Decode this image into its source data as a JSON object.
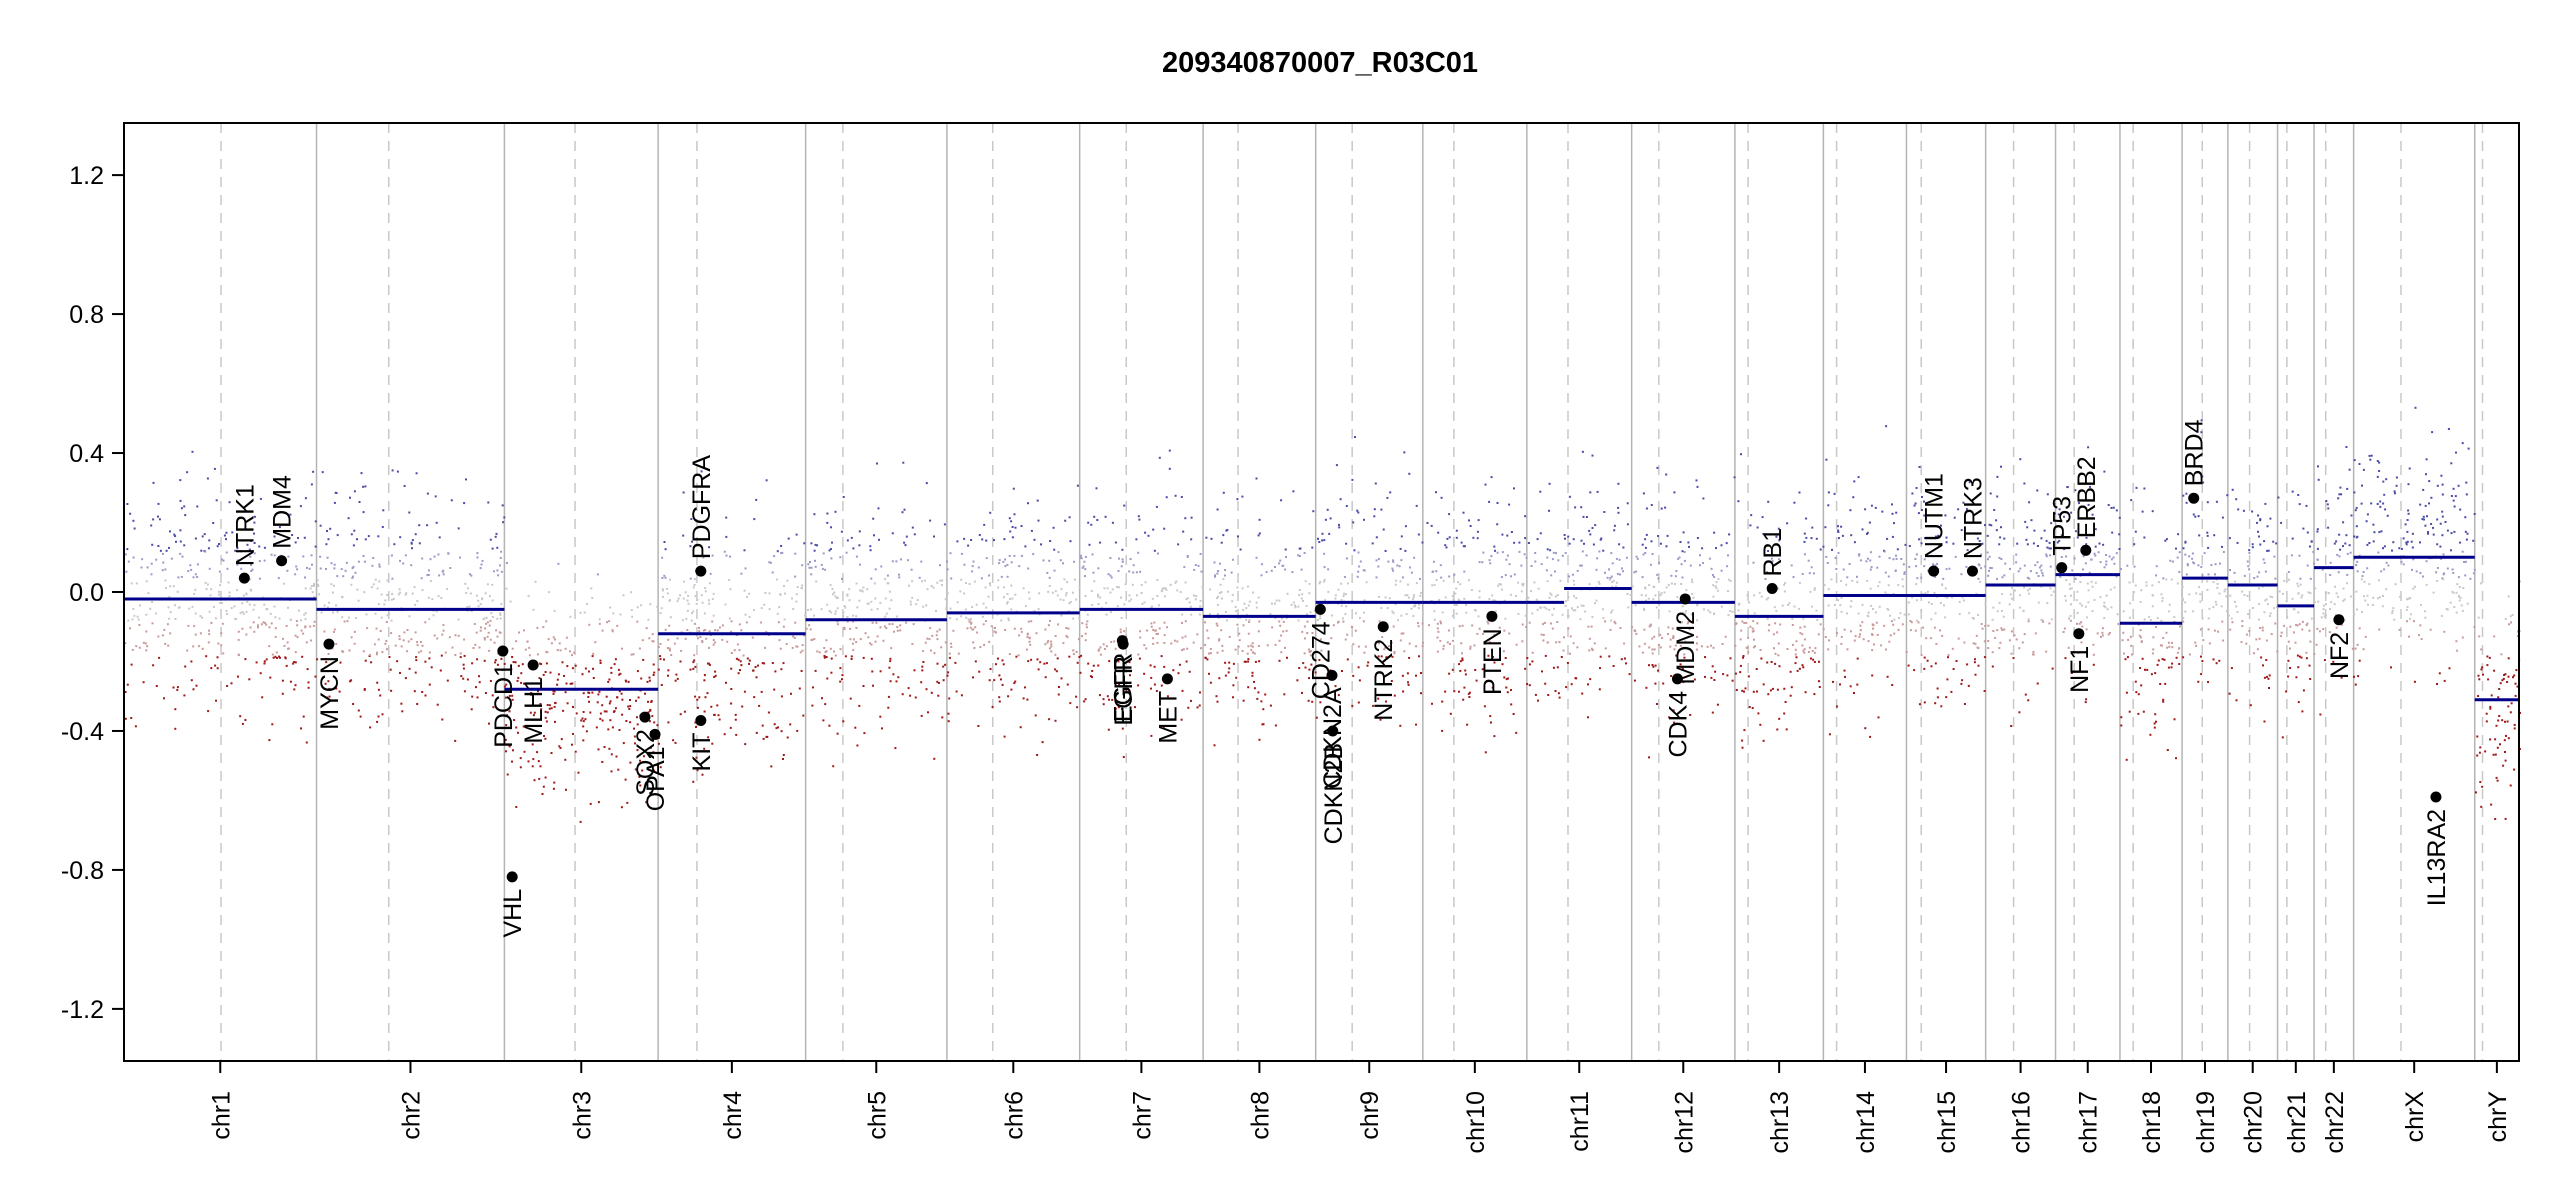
{
  "chart_data": {
    "type": "scatter",
    "title": "209340870007_R03C01",
    "xlabel": "",
    "ylabel": "",
    "ylim": [
      -1.35,
      1.35
    ],
    "y_ticks": [
      -1.2,
      -0.8,
      -0.4,
      0.0,
      0.4,
      0.8,
      1.2
    ],
    "y_tick_labels": [
      "-1.2",
      "-0.8",
      "-0.4",
      "0.0",
      "0.4",
      "0.8",
      "1.2"
    ],
    "colors": {
      "gain": "#4b4ba8",
      "loss": "#a01818",
      "neutral": "#c8c8c8",
      "segment": "#00008b"
    },
    "chromosomes": [
      {
        "name": "chr1",
        "start": 0,
        "end": 248,
        "centromere": 125,
        "segments": [
          {
            "start": 0,
            "end": 248,
            "value": -0.02
          }
        ]
      },
      {
        "name": "chr2",
        "start": 248,
        "end": 490,
        "centromere": 341,
        "segments": [
          {
            "start": 248,
            "end": 490,
            "value": -0.05
          }
        ]
      },
      {
        "name": "chr3",
        "start": 490,
        "end": 688,
        "centromere": 581,
        "segments": [
          {
            "start": 490,
            "end": 688,
            "value": -0.28
          }
        ]
      },
      {
        "name": "chr4",
        "start": 688,
        "end": 878,
        "centromere": 738,
        "segments": [
          {
            "start": 688,
            "end": 878,
            "value": -0.12
          }
        ]
      },
      {
        "name": "chr5",
        "start": 878,
        "end": 1060,
        "centromere": 926,
        "segments": [
          {
            "start": 878,
            "end": 1060,
            "value": -0.08
          }
        ]
      },
      {
        "name": "chr6",
        "start": 1060,
        "end": 1231,
        "centromere": 1119,
        "segments": [
          {
            "start": 1060,
            "end": 1231,
            "value": -0.06
          }
        ]
      },
      {
        "name": "chr7",
        "start": 1231,
        "end": 1390,
        "centromere": 1291,
        "segments": [
          {
            "start": 1231,
            "end": 1390,
            "value": -0.05
          }
        ]
      },
      {
        "name": "chr8",
        "start": 1390,
        "end": 1535,
        "centromere": 1435,
        "segments": [
          {
            "start": 1390,
            "end": 1535,
            "value": -0.07
          }
        ]
      },
      {
        "name": "chr9",
        "start": 1535,
        "end": 1673,
        "centromere": 1582,
        "segments": [
          {
            "start": 1535,
            "end": 1673,
            "value": -0.03
          }
        ]
      },
      {
        "name": "chr10",
        "start": 1673,
        "end": 1807,
        "centromere": 1713,
        "segments": [
          {
            "start": 1673,
            "end": 1807,
            "value": -0.03
          }
        ]
      },
      {
        "name": "chr11",
        "start": 1807,
        "end": 1942,
        "centromere": 1860,
        "segments": [
          {
            "start": 1807,
            "end": 1855,
            "value": -0.03
          },
          {
            "start": 1855,
            "end": 1942,
            "value": 0.01
          }
        ]
      },
      {
        "name": "chr12",
        "start": 1942,
        "end": 2075,
        "centromere": 1977,
        "segments": [
          {
            "start": 1942,
            "end": 2075,
            "value": -0.03
          }
        ]
      },
      {
        "name": "chr13",
        "start": 2075,
        "end": 2189,
        "centromere": 2092,
        "segments": [
          {
            "start": 2075,
            "end": 2189,
            "value": -0.07
          }
        ]
      },
      {
        "name": "chr14",
        "start": 2189,
        "end": 2296,
        "centromere": 2206,
        "segments": [
          {
            "start": 2189,
            "end": 2296,
            "value": -0.01
          }
        ]
      },
      {
        "name": "chr15",
        "start": 2296,
        "end": 2398,
        "centromere": 2315,
        "segments": [
          {
            "start": 2296,
            "end": 2398,
            "value": -0.01
          }
        ]
      },
      {
        "name": "chr16",
        "start": 2398,
        "end": 2488,
        "centromere": 2434,
        "segments": [
          {
            "start": 2398,
            "end": 2488,
            "value": 0.02
          }
        ]
      },
      {
        "name": "chr17",
        "start": 2488,
        "end": 2571,
        "centromere": 2512,
        "segments": [
          {
            "start": 2488,
            "end": 2571,
            "value": 0.05
          }
        ]
      },
      {
        "name": "chr18",
        "start": 2571,
        "end": 2651,
        "centromere": 2588,
        "segments": [
          {
            "start": 2571,
            "end": 2651,
            "value": -0.09
          }
        ]
      },
      {
        "name": "chr19",
        "start": 2651,
        "end": 2710,
        "centromere": 2677,
        "segments": [
          {
            "start": 2651,
            "end": 2710,
            "value": 0.04
          }
        ]
      },
      {
        "name": "chr20",
        "start": 2710,
        "end": 2774,
        "centromere": 2738,
        "segments": [
          {
            "start": 2710,
            "end": 2774,
            "value": 0.02
          }
        ]
      },
      {
        "name": "chr21",
        "start": 2774,
        "end": 2821,
        "centromere": 2786,
        "segments": [
          {
            "start": 2774,
            "end": 2821,
            "value": -0.04
          }
        ]
      },
      {
        "name": "chr22",
        "start": 2821,
        "end": 2872,
        "centromere": 2836,
        "segments": [
          {
            "start": 2821,
            "end": 2872,
            "value": 0.07
          }
        ]
      },
      {
        "name": "chrX",
        "start": 2872,
        "end": 3028,
        "centromere": 2933,
        "segments": [
          {
            "start": 2872,
            "end": 3028,
            "value": 0.1
          }
        ]
      },
      {
        "name": "chrY",
        "start": 3028,
        "end": 3085,
        "centromere": 3038,
        "segments": [
          {
            "start": 3028,
            "end": 3085,
            "value": -0.31
          }
        ]
      }
    ],
    "genes": [
      {
        "name": "NTRK1",
        "pos": 155,
        "value": 0.04,
        "label_side": "above"
      },
      {
        "name": "MDM4",
        "pos": 203,
        "value": 0.09,
        "label_side": "above"
      },
      {
        "name": "MYCN",
        "pos": 264,
        "value": -0.15,
        "label_side": "below"
      },
      {
        "name": "PDCD1",
        "pos": 488,
        "value": -0.17,
        "label_side": "below"
      },
      {
        "name": "VHL",
        "pos": 500,
        "value": -0.82,
        "label_side": "below"
      },
      {
        "name": "MLH1",
        "pos": 527,
        "value": -0.21,
        "label_side": "below"
      },
      {
        "name": "SOX2",
        "pos": 671,
        "value": -0.36,
        "label_side": "below"
      },
      {
        "name": "OPA1",
        "pos": 684,
        "value": -0.41,
        "label_side": "below"
      },
      {
        "name": "PDGFRA",
        "pos": 743,
        "value": 0.06,
        "label_side": "above"
      },
      {
        "name": "KIT",
        "pos": 743,
        "value": -0.37,
        "label_side": "below"
      },
      {
        "name": "EGFR",
        "pos": 1286,
        "value": -0.14,
        "label_side": "below"
      },
      {
        "name": "EGFR",
        "pos": 1287,
        "value": -0.15,
        "label_side": "below"
      },
      {
        "name": "MET",
        "pos": 1344,
        "value": -0.25,
        "label_side": "below"
      },
      {
        "name": "CD274",
        "pos": 1541,
        "value": -0.05,
        "label_side": "below"
      },
      {
        "name": "CDKN2A",
        "pos": 1556,
        "value": -0.24,
        "label_side": "below"
      },
      {
        "name": "CDKN2B",
        "pos": 1557,
        "value": -0.4,
        "label_side": "below"
      },
      {
        "name": "NTRK2",
        "pos": 1622,
        "value": -0.1,
        "label_side": "below"
      },
      {
        "name": "PTEN",
        "pos": 1762,
        "value": -0.07,
        "label_side": "below"
      },
      {
        "name": "MDM2",
        "pos": 2011,
        "value": -0.02,
        "label_side": "below"
      },
      {
        "name": "CDK4",
        "pos": 2001,
        "value": -0.25,
        "label_side": "below"
      },
      {
        "name": "RB1",
        "pos": 2123,
        "value": 0.01,
        "label_side": "above"
      },
      {
        "name": "NUTM1",
        "pos": 2331,
        "value": 0.06,
        "label_side": "above"
      },
      {
        "name": "NTRK3",
        "pos": 2381,
        "value": 0.06,
        "label_side": "above"
      },
      {
        "name": "TP53",
        "pos": 2496,
        "value": 0.07,
        "label_side": "above"
      },
      {
        "name": "NF1",
        "pos": 2518,
        "value": -0.12,
        "label_side": "below"
      },
      {
        "name": "ERBB2",
        "pos": 2527,
        "value": 0.12,
        "label_side": "above"
      },
      {
        "name": "BRD4",
        "pos": 2666,
        "value": 0.27,
        "label_side": "above"
      },
      {
        "name": "NF2",
        "pos": 2853,
        "value": -0.08,
        "label_side": "below"
      },
      {
        "name": "IL13RA2",
        "pos": 2978,
        "value": -0.59,
        "label_side": "below"
      }
    ]
  }
}
